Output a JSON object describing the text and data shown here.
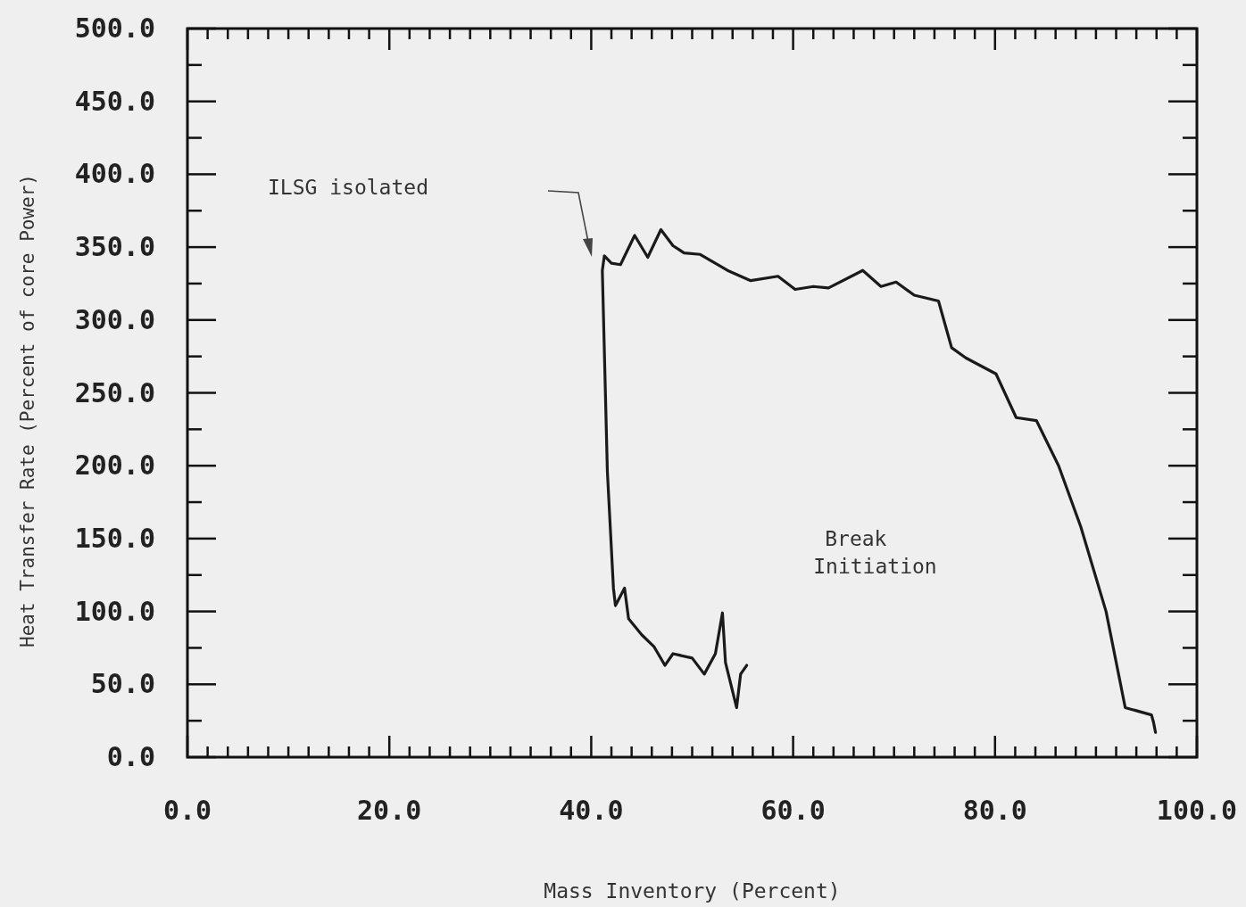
{
  "chart_data": {
    "type": "line",
    "xlabel": "Mass Inventory (Percent)",
    "ylabel": "Heat Transfer Rate (Percent of core Power)",
    "xlim": [
      0,
      100
    ],
    "ylim": [
      0,
      500
    ],
    "xticks": [
      {
        "value": 0,
        "label": "0.0"
      },
      {
        "value": 2,
        "label": null
      },
      {
        "value": 4,
        "label": null
      },
      {
        "value": 6,
        "label": null
      },
      {
        "value": 8,
        "label": null
      },
      {
        "value": 10,
        "label": null
      },
      {
        "value": 12,
        "label": null
      },
      {
        "value": 14,
        "label": null
      },
      {
        "value": 16,
        "label": null
      },
      {
        "value": 18,
        "label": null
      },
      {
        "value": 20,
        "label": "20.0"
      },
      {
        "value": 22,
        "label": null
      },
      {
        "value": 24,
        "label": null
      },
      {
        "value": 26,
        "label": null
      },
      {
        "value": 28,
        "label": null
      },
      {
        "value": 30,
        "label": null
      },
      {
        "value": 32,
        "label": null
      },
      {
        "value": 34,
        "label": null
      },
      {
        "value": 36,
        "label": null
      },
      {
        "value": 38,
        "label": null
      },
      {
        "value": 40,
        "label": "40.0"
      },
      {
        "value": 42,
        "label": null
      },
      {
        "value": 44,
        "label": null
      },
      {
        "value": 46,
        "label": null
      },
      {
        "value": 48,
        "label": null
      },
      {
        "value": 50,
        "label": null
      },
      {
        "value": 52,
        "label": null
      },
      {
        "value": 54,
        "label": null
      },
      {
        "value": 56,
        "label": null
      },
      {
        "value": 58,
        "label": null
      },
      {
        "value": 60,
        "label": "60.0"
      },
      {
        "value": 62,
        "label": null
      },
      {
        "value": 64,
        "label": null
      },
      {
        "value": 66,
        "label": null
      },
      {
        "value": 68,
        "label": null
      },
      {
        "value": 70,
        "label": null
      },
      {
        "value": 72,
        "label": null
      },
      {
        "value": 74,
        "label": null
      },
      {
        "value": 76,
        "label": null
      },
      {
        "value": 78,
        "label": null
      },
      {
        "value": 80,
        "label": "80.0"
      },
      {
        "value": 82,
        "label": null
      },
      {
        "value": 84,
        "label": null
      },
      {
        "value": 86,
        "label": null
      },
      {
        "value": 88,
        "label": null
      },
      {
        "value": 90,
        "label": null
      },
      {
        "value": 92,
        "label": null
      },
      {
        "value": 94,
        "label": null
      },
      {
        "value": 96,
        "label": null
      },
      {
        "value": 98,
        "label": null
      },
      {
        "value": 100,
        "label": "100.0"
      }
    ],
    "yticks": [
      {
        "value": 0,
        "label": "0.0"
      },
      {
        "value": 25,
        "label": null
      },
      {
        "value": 50,
        "label": "50.0"
      },
      {
        "value": 75,
        "label": null
      },
      {
        "value": 100,
        "label": "100.0"
      },
      {
        "value": 125,
        "label": null
      },
      {
        "value": 150,
        "label": "150.0"
      },
      {
        "value": 175,
        "label": null
      },
      {
        "value": 200,
        "label": "200.0"
      },
      {
        "value": 225,
        "label": null
      },
      {
        "value": 250,
        "label": "250.0"
      },
      {
        "value": 275,
        "label": null
      },
      {
        "value": 300,
        "label": "300.0"
      },
      {
        "value": 325,
        "label": null
      },
      {
        "value": 350,
        "label": "350.0"
      },
      {
        "value": 375,
        "label": null
      },
      {
        "value": 400,
        "label": "400.0"
      },
      {
        "value": 425,
        "label": null
      },
      {
        "value": 450,
        "label": "450.0"
      },
      {
        "value": 475,
        "label": null
      },
      {
        "value": 500,
        "label": "500.0"
      }
    ],
    "grid": false,
    "marker": "none",
    "line_style": "solid",
    "annotations": [
      "ILSG isolated",
      "Break Initiation"
    ],
    "series": [
      {
        "color": "#1a1a1a",
        "x": [
          95.9,
          95.7,
          95.5,
          92.9,
          91.0,
          88.5,
          86.3,
          84.1,
          82.1,
          80.1,
          77.1,
          75.7,
          74.4,
          72.0,
          70.2,
          68.7,
          66.9,
          63.5,
          62.0,
          60.2,
          58.5,
          55.8,
          53.5,
          50.8,
          49.2,
          48.1,
          46.9,
          45.6,
          44.3,
          42.9,
          42.0,
          41.3,
          41.1,
          41.6,
          42.2,
          42.4,
          43.3,
          43.7,
          45.0,
          46.2,
          47.3,
          48.1,
          50.0,
          51.2,
          52.3,
          53.0,
          53.3,
          54.4,
          54.8,
          55.4
        ],
        "values": [
          17,
          24,
          29,
          34,
          100,
          158,
          200,
          231,
          233,
          263,
          274,
          281,
          313,
          317,
          326,
          323,
          334,
          322,
          323,
          321,
          330,
          327,
          334,
          345,
          346,
          351,
          362,
          343,
          358,
          338,
          339,
          344,
          334,
          196,
          116,
          104,
          116,
          95,
          84,
          76,
          63,
          71,
          68,
          57,
          71,
          99,
          65,
          34,
          57,
          63
        ]
      }
    ]
  }
}
